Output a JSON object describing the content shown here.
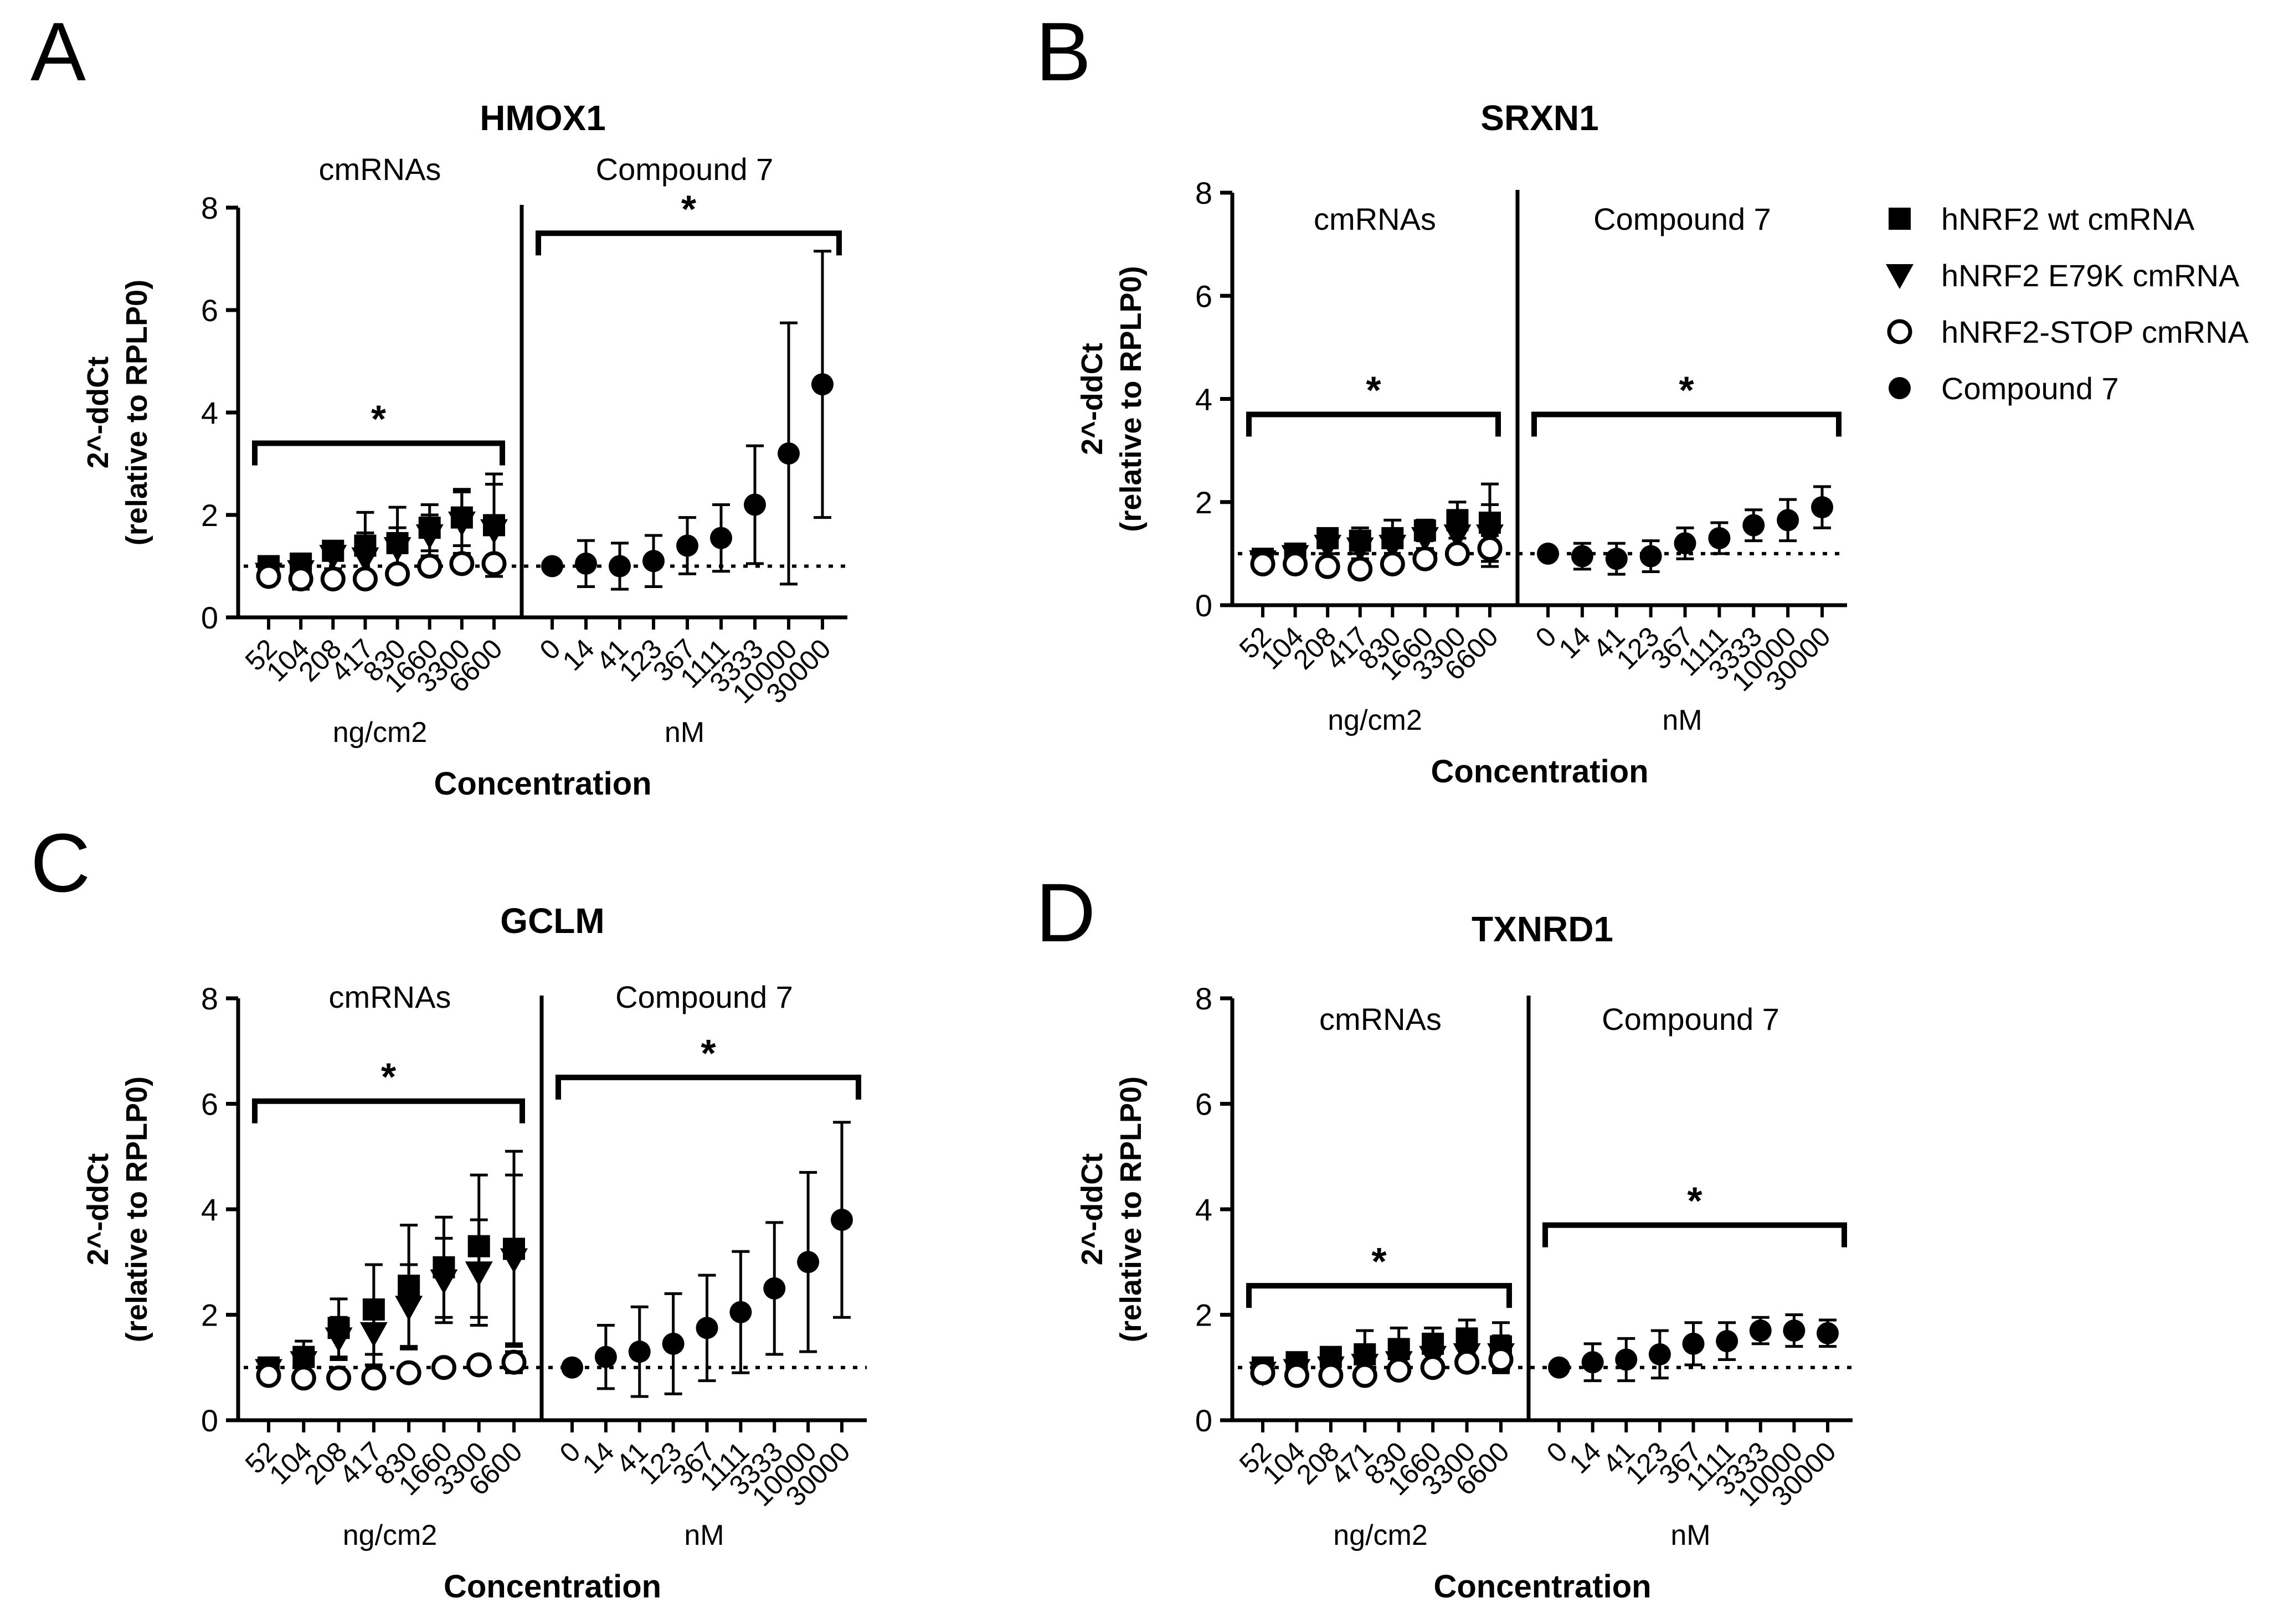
{
  "legend": [
    {
      "marker": "square",
      "label": "hNRF2 wt cmRNA"
    },
    {
      "marker": "triangle-down",
      "label": "hNRF2 E79K cmRNA"
    },
    {
      "marker": "open-circle",
      "label": "hNRF2-STOP cmRNA"
    },
    {
      "marker": "circle",
      "label": "Compound 7"
    }
  ],
  "colors": {
    "ink": "#000000",
    "background": "#ffffff"
  },
  "chart_data": [
    {
      "type": "scatter",
      "panel": "A",
      "title": "HMOX1",
      "ylabel_main": "2^-ddCt",
      "ylabel_sub": "(relative to RPLP0)",
      "xlabel": "Concentration",
      "ylim": [
        0,
        8
      ],
      "yticks": [
        "0",
        "2",
        "4",
        "6",
        "8"
      ],
      "reference_line": 1,
      "left_group": {
        "label": "cmRNAs",
        "unit": "ng/cm2",
        "ticks": [
          "52",
          "104",
          "208",
          "417",
          "830",
          "1660",
          "3300",
          "6600"
        ],
        "significance": "*",
        "bracket_y": 3.4
      },
      "right_group": {
        "label": "Compound 7",
        "unit": "nM",
        "ticks": [
          "0",
          "14",
          "41",
          "123",
          "367",
          "1111",
          "3333",
          "10000",
          "30000"
        ],
        "significance": "*",
        "bracket_y": 7.5
      },
      "series": [
        {
          "name": "hNRF2 wt cmRNA",
          "group": "left",
          "marker": "square",
          "values": [
            1.0,
            1.05,
            1.3,
            1.4,
            1.45,
            1.75,
            1.95,
            1.8
          ],
          "err": [
            0.1,
            0.1,
            0.15,
            0.65,
            0.7,
            0.45,
            0.55,
            1.0
          ]
        },
        {
          "name": "hNRF2 E79K cmRNA",
          "group": "left",
          "marker": "triangle-down",
          "values": [
            0.85,
            0.9,
            1.2,
            1.15,
            1.35,
            1.6,
            1.85,
            1.7
          ],
          "err": [
            0.15,
            0.15,
            0.25,
            0.5,
            0.4,
            0.4,
            0.6,
            0.9
          ]
        },
        {
          "name": "hNRF2-STOP cmRNA",
          "group": "left",
          "marker": "open-circle",
          "values": [
            0.8,
            0.75,
            0.75,
            0.75,
            0.85,
            1.0,
            1.05,
            1.05
          ],
          "err": [
            0.1,
            0.2,
            0.1,
            0.15,
            0.15,
            0.1,
            0.1,
            0.15
          ]
        },
        {
          "name": "Compound 7",
          "group": "right",
          "marker": "circle",
          "values": [
            1.0,
            1.05,
            1.0,
            1.1,
            1.4,
            1.55,
            2.2,
            3.2,
            4.55
          ],
          "err": [
            0.0,
            0.45,
            0.45,
            0.5,
            0.55,
            0.65,
            1.15,
            2.55,
            2.6
          ]
        }
      ]
    },
    {
      "type": "scatter",
      "panel": "B",
      "title": "SRXN1",
      "ylabel_main": "2^-ddCt",
      "ylabel_sub": "(relative to RPLP0)",
      "xlabel": "Concentration",
      "ylim": [
        0,
        8
      ],
      "yticks": [
        "0",
        "2",
        "4",
        "6",
        "8"
      ],
      "reference_line": 1,
      "left_group": {
        "label": "cmRNAs",
        "unit": "ng/cm2",
        "ticks": [
          "52",
          "104",
          "208",
          "417",
          "830",
          "1660",
          "3300",
          "6600"
        ],
        "significance": "*",
        "bracket_y": 3.7
      },
      "right_group": {
        "label": "Compound 7",
        "unit": "nM",
        "ticks": [
          "0",
          "14",
          "41",
          "123",
          "367",
          "1111",
          "3333",
          "10000",
          "30000"
        ],
        "significance": "*",
        "bracket_y": 3.7
      },
      "series": [
        {
          "name": "hNRF2 wt cmRNA",
          "group": "left",
          "marker": "square",
          "values": [
            0.9,
            1.0,
            1.3,
            1.25,
            1.3,
            1.45,
            1.65,
            1.6
          ],
          "err": [
            0.1,
            0.1,
            0.15,
            0.25,
            0.35,
            0.2,
            0.35,
            0.75
          ]
        },
        {
          "name": "hNRF2 E79K cmRNA",
          "group": "left",
          "marker": "triangle-down",
          "values": [
            0.85,
            0.95,
            1.15,
            1.1,
            1.15,
            1.3,
            1.35,
            1.35
          ],
          "err": [
            0.1,
            0.1,
            0.15,
            0.2,
            0.25,
            0.2,
            0.3,
            0.6
          ]
        },
        {
          "name": "hNRF2-STOP cmRNA",
          "group": "left",
          "marker": "open-circle",
          "values": [
            0.8,
            0.8,
            0.75,
            0.7,
            0.8,
            0.9,
            1.0,
            1.1
          ],
          "err": [
            0.1,
            0.1,
            0.1,
            0.15,
            0.15,
            0.1,
            0.15,
            0.25
          ]
        },
        {
          "name": "Compound 7",
          "group": "right",
          "marker": "circle",
          "values": [
            1.0,
            0.95,
            0.9,
            0.95,
            1.2,
            1.3,
            1.55,
            1.65,
            1.9
          ],
          "err": [
            0.0,
            0.25,
            0.3,
            0.3,
            0.3,
            0.3,
            0.3,
            0.4,
            0.4
          ]
        }
      ]
    },
    {
      "type": "scatter",
      "panel": "C",
      "title": "GCLM",
      "ylabel_main": "2^-ddCt",
      "ylabel_sub": "(relative to RPLP0)",
      "xlabel": "Concentration",
      "ylim": [
        0,
        8
      ],
      "yticks": [
        "0",
        "2",
        "4",
        "6",
        "8"
      ],
      "reference_line": 1,
      "left_group": {
        "label": "cmRNAs",
        "unit": "ng/cm2",
        "ticks": [
          "52",
          "104",
          "208",
          "417",
          "830",
          "1660",
          "3300",
          "6600"
        ],
        "significance": "*",
        "bracket_y": 6.05
      },
      "right_group": {
        "label": "Compound 7",
        "unit": "nM",
        "ticks": [
          "0",
          "14",
          "41",
          "123",
          "367",
          "1111",
          "3333",
          "10000",
          "30000"
        ],
        "significance": "*",
        "bracket_y": 6.5
      },
      "series": [
        {
          "name": "hNRF2 wt cmRNA",
          "group": "left",
          "marker": "square",
          "values": [
            1.0,
            1.2,
            1.75,
            2.1,
            2.55,
            2.9,
            3.3,
            3.25
          ],
          "err": [
            0.1,
            0.3,
            0.55,
            0.85,
            1.15,
            0.95,
            1.35,
            1.85
          ]
        },
        {
          "name": "hNRF2 E79K cmRNA",
          "group": "left",
          "marker": "triangle-down",
          "values": [
            0.95,
            1.1,
            1.55,
            1.65,
            2.15,
            2.65,
            2.8,
            3.05
          ],
          "err": [
            0.1,
            0.25,
            0.4,
            0.6,
            0.8,
            0.8,
            1.0,
            1.6
          ]
        },
        {
          "name": "hNRF2-STOP cmRNA",
          "group": "left",
          "marker": "open-circle",
          "values": [
            0.85,
            0.8,
            0.8,
            0.8,
            0.9,
            1.0,
            1.05,
            1.1
          ],
          "err": [
            0.1,
            0.1,
            0.1,
            0.15,
            0.1,
            0.1,
            0.1,
            0.2
          ]
        },
        {
          "name": "Compound 7",
          "group": "right",
          "marker": "circle",
          "values": [
            1.0,
            1.2,
            1.3,
            1.45,
            1.75,
            2.05,
            2.5,
            3.0,
            3.8
          ],
          "err": [
            0.0,
            0.6,
            0.85,
            0.95,
            1.0,
            1.15,
            1.25,
            1.7,
            1.85
          ]
        }
      ]
    },
    {
      "type": "scatter",
      "panel": "D",
      "title": "TXNRD1",
      "ylabel_main": "2^-ddCt",
      "ylabel_sub": "(relative to RPLP0)",
      "xlabel": "Concentration",
      "ylim": [
        0,
        8
      ],
      "yticks": [
        "0",
        "2",
        "4",
        "6",
        "8"
      ],
      "reference_line": 1,
      "left_group": {
        "label": "cmRNAs",
        "unit": "ng/cm2",
        "ticks": [
          "52",
          "104",
          "208",
          "471",
          "830",
          "1660",
          "3300",
          "6600"
        ],
        "significance": "*",
        "bracket_y": 2.55
      },
      "right_group": {
        "label": "Compound 7",
        "unit": "nM",
        "ticks": [
          "0",
          "14",
          "41",
          "123",
          "367",
          "1111",
          "3333",
          "10000",
          "30000"
        ],
        "significance": "*",
        "bracket_y": 3.7
      },
      "series": [
        {
          "name": "hNRF2 wt cmRNA",
          "group": "left",
          "marker": "square",
          "values": [
            1.0,
            1.1,
            1.2,
            1.25,
            1.35,
            1.45,
            1.55,
            1.4
          ],
          "err": [
            0.1,
            0.1,
            0.1,
            0.45,
            0.4,
            0.3,
            0.35,
            0.45
          ]
        },
        {
          "name": "hNRF2 E79K cmRNA",
          "group": "left",
          "marker": "triangle-down",
          "values": [
            0.9,
            0.95,
            1.0,
            1.05,
            1.1,
            1.2,
            1.25,
            1.25
          ],
          "err": [
            0.15,
            0.15,
            0.15,
            0.3,
            0.3,
            0.25,
            0.3,
            0.35
          ]
        },
        {
          "name": "hNRF2-STOP cmRNA",
          "group": "left",
          "marker": "open-circle",
          "values": [
            0.9,
            0.85,
            0.85,
            0.85,
            0.95,
            1.0,
            1.1,
            1.15
          ],
          "err": [
            0.1,
            0.1,
            0.1,
            0.1,
            0.15,
            0.1,
            0.15,
            0.2
          ]
        },
        {
          "name": "Compound 7",
          "group": "right",
          "marker": "circle",
          "values": [
            1.0,
            1.1,
            1.15,
            1.25,
            1.45,
            1.5,
            1.7,
            1.7,
            1.65
          ],
          "err": [
            0.0,
            0.35,
            0.4,
            0.45,
            0.4,
            0.35,
            0.25,
            0.3,
            0.25
          ]
        }
      ]
    }
  ]
}
